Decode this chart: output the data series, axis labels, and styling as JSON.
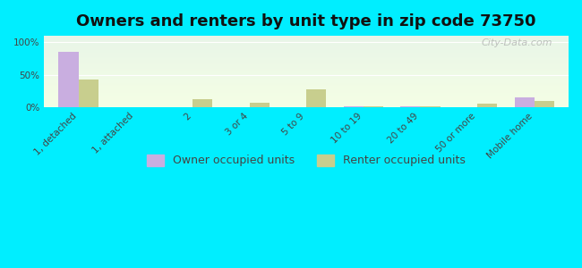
{
  "title": "Owners and renters by unit type in zip code 73750",
  "categories": [
    "1, detached",
    "1, attached",
    "2",
    "3 or 4",
    "5 to 9",
    "10 to 19",
    "20 to 49",
    "50 or more",
    "Mobile home"
  ],
  "owner_values": [
    85,
    0,
    0,
    0,
    0,
    1,
    1,
    0,
    15
  ],
  "renter_values": [
    43,
    0,
    12,
    7,
    28,
    1,
    1,
    5,
    10
  ],
  "owner_color": "#c9aee0",
  "renter_color": "#c8ce8e",
  "background_top": "#e8f5e8",
  "background_bottom": "#f5ffe5",
  "outer_bg": "#00eeff",
  "yticks": [
    0,
    50,
    100
  ],
  "ylabel_fmt": "{}%",
  "watermark": "City-Data.com",
  "legend_owner": "Owner occupied units",
  "legend_renter": "Renter occupied units",
  "bar_width": 0.35,
  "title_fontsize": 13,
  "tick_fontsize": 7.5,
  "legend_fontsize": 9
}
